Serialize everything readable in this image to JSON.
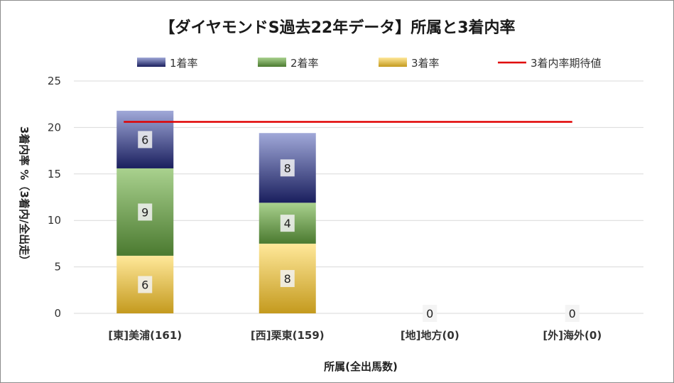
{
  "chart_data": {
    "type": "bar",
    "stacked": true,
    "title": "【ダイヤモンドS過去22年データ】所属と3着内率",
    "xlabel": "所属(全出馬数)",
    "ylabel": "3着内率 %（3着内/全出走）",
    "ylim": [
      0,
      25
    ],
    "yticks": [
      0,
      5,
      10,
      15,
      20,
      25
    ],
    "grid": true,
    "legend_position": "top",
    "categories": [
      "[東]美浦(161)",
      "[西]栗東(159)",
      "[地]地方(0)",
      "[外]海外(0)"
    ],
    "series": [
      {
        "name": "3着率",
        "values": [
          6.2,
          7.5,
          0,
          0
        ],
        "labels": [
          "6",
          "8",
          "0",
          "0"
        ],
        "color_top": "#ffe89a",
        "color_bottom": "#c49a1e"
      },
      {
        "name": "2着率",
        "values": [
          9.4,
          4.4,
          0,
          0
        ],
        "labels": [
          "9",
          "4",
          "",
          ""
        ],
        "color_top": "#a9d18e",
        "color_bottom": "#4b7a30"
      },
      {
        "name": "1着率",
        "values": [
          6.2,
          7.5,
          0,
          0
        ],
        "labels": [
          "6",
          "8",
          "",
          ""
        ],
        "color_top": "#a0a8d8",
        "color_bottom": "#1a1f5e"
      }
    ],
    "reference_line": {
      "name": "3着内率期待値",
      "value": 20.6,
      "color": "#e00000"
    }
  }
}
